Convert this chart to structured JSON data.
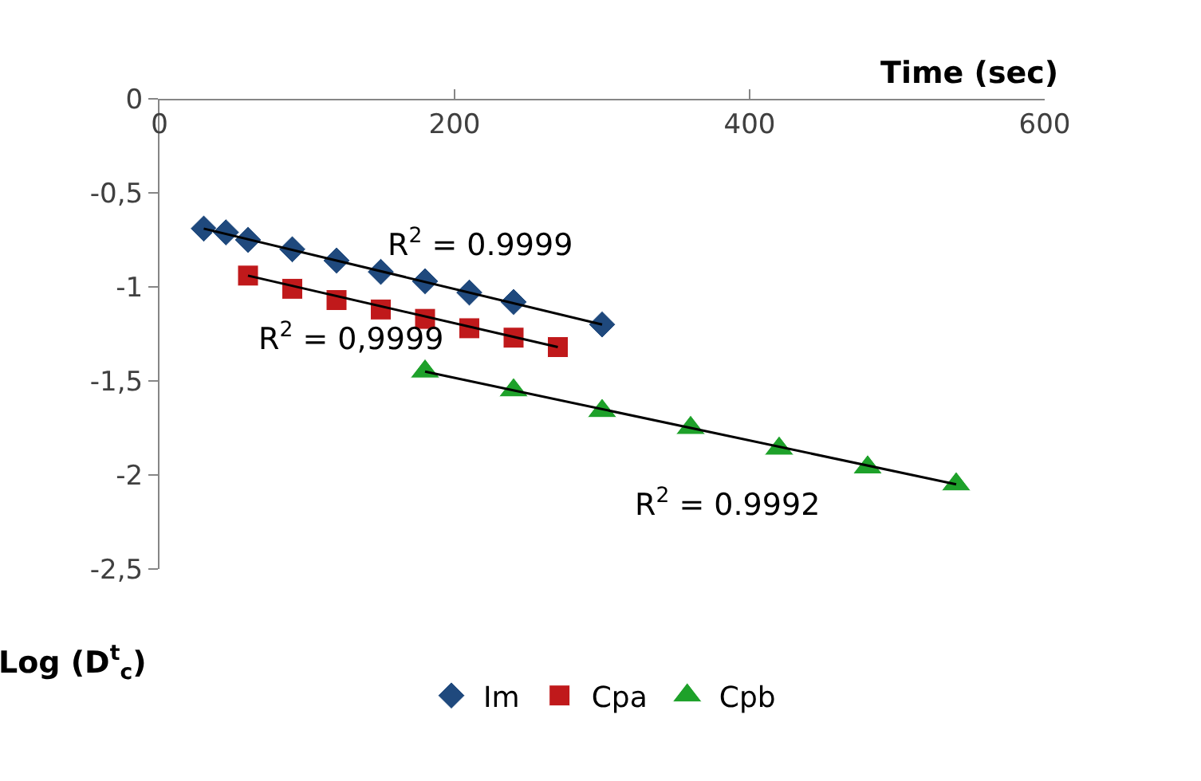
{
  "chart_data": {
    "type": "scatter",
    "xlabel": "Time (sec)",
    "ylabel": "Log (D$^{t}$$_{c}$)",
    "xlim": [
      0,
      600
    ],
    "xticks": [
      0,
      200,
      400,
      600
    ],
    "ylim": [
      -2.5,
      0
    ],
    "yticks": [
      0,
      {
        "value": -0.5,
        "label": "-0,5"
      },
      -1,
      {
        "value": -1.5,
        "label": "-1,5"
      },
      -2,
      {
        "value": -2.5,
        "label": "-2,5"
      }
    ],
    "legend": "bottom",
    "series": [
      {
        "name": "Im",
        "color": "#1f497d",
        "marker": "diamond",
        "x": [
          30,
          45,
          60,
          90,
          120,
          150,
          180,
          210,
          240,
          300
        ],
        "values": [
          -0.69,
          -0.71,
          -0.75,
          -0.8,
          -0.86,
          -0.92,
          -0.97,
          -1.03,
          -1.08,
          -1.2
        ]
      },
      {
        "name": "Cpa",
        "color": "#c0191b",
        "marker": "square",
        "x": [
          60,
          90,
          120,
          150,
          180,
          210,
          240,
          270
        ],
        "values": [
          -0.94,
          -1.01,
          -1.07,
          -1.12,
          -1.17,
          -1.22,
          -1.27,
          -1.32
        ]
      },
      {
        "name": "Cpb",
        "color": "#1ea12a",
        "marker": "triangle",
        "x": [
          180,
          240,
          300,
          360,
          420,
          480,
          540
        ],
        "values": [
          -1.45,
          -1.55,
          -1.66,
          -1.75,
          -1.86,
          -1.96,
          -2.05
        ]
      },
      {
        "type": "line",
        "color": "#000000",
        "marker": "none",
        "x": [
          30,
          300
        ],
        "values": [
          -0.69,
          -1.2
        ]
      },
      {
        "type": "line",
        "color": "#000000",
        "marker": "none",
        "x": [
          60,
          270
        ],
        "values": [
          -0.94,
          -1.32
        ]
      },
      {
        "type": "line",
        "color": "#000000",
        "marker": "none",
        "x": [
          180,
          540
        ],
        "values": [
          -1.45,
          -2.05
        ]
      }
    ],
    "annotations": [
      "R$^{2}$ = 0.9999",
      "R$^{2}$ = 0,9999",
      "R$^{2}$ = 0.9992"
    ]
  }
}
